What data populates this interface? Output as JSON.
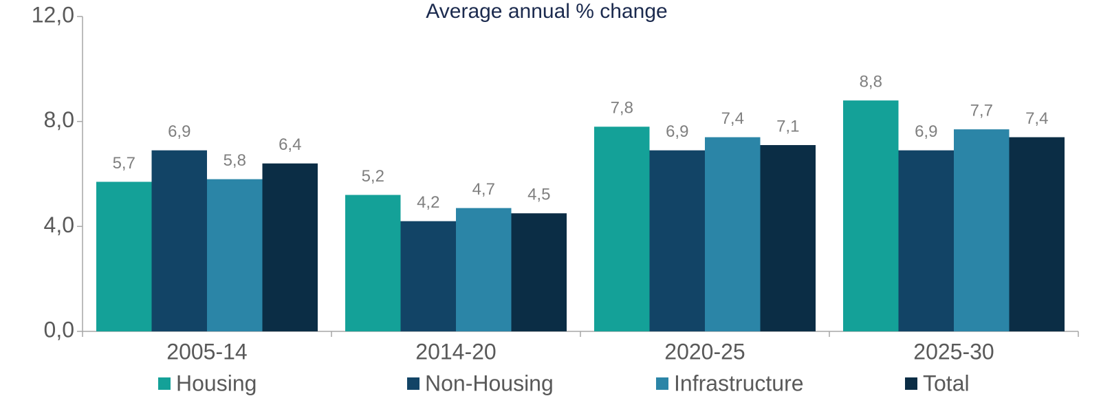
{
  "chart_data": {
    "type": "bar",
    "title": "Average annual % change",
    "categories": [
      "2005-14",
      "2014-20",
      "2020-25",
      "2025-30"
    ],
    "series": [
      {
        "name": "Housing",
        "color": "#14a198",
        "values": [
          5.7,
          5.2,
          7.8,
          8.8
        ],
        "value_labels": [
          "5,7",
          "5,2",
          "7,8",
          "8,8"
        ]
      },
      {
        "name": "Non-Housing",
        "color": "#124466",
        "values": [
          6.9,
          4.2,
          6.9,
          6.9
        ],
        "value_labels": [
          "6,9",
          "4,2",
          "6,9",
          "6,9"
        ]
      },
      {
        "name": "Infrastructure",
        "color": "#2b85a7",
        "values": [
          5.8,
          4.7,
          7.4,
          7.7
        ],
        "value_labels": [
          "5,8",
          "4,7",
          "7,4",
          "7,7"
        ]
      },
      {
        "name": "Total",
        "color": "#0b2d45",
        "values": [
          6.4,
          4.5,
          7.1,
          7.4
        ],
        "value_labels": [
          "6,4",
          "4,5",
          "7,1",
          "7,4"
        ]
      }
    ],
    "ylim": [
      0,
      12
    ],
    "yticks": [
      {
        "value": 0,
        "label": "0,0"
      },
      {
        "value": 4,
        "label": "4,0"
      },
      {
        "value": 8,
        "label": "8,0"
      },
      {
        "value": 12,
        "label": "12,0"
      }
    ],
    "grid": false
  }
}
